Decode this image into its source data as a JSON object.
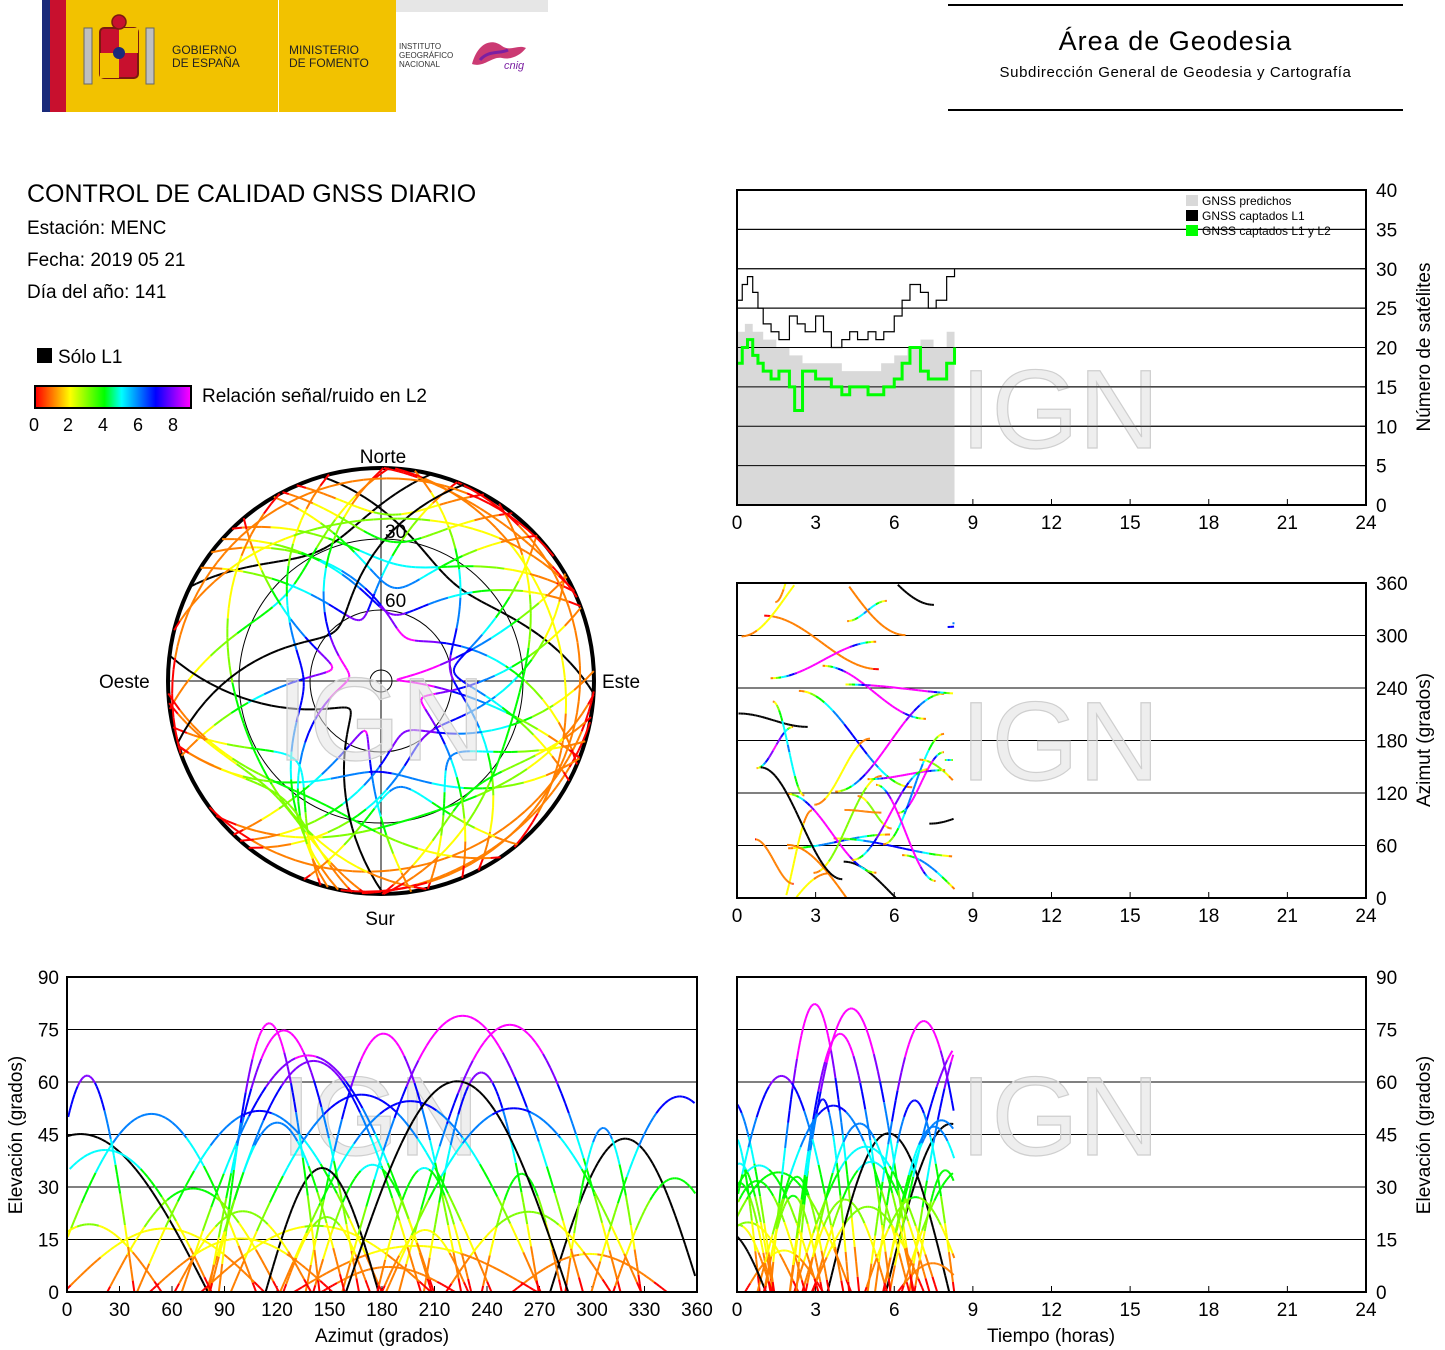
{
  "header": {
    "logo_gobierno": "GOBIERNO\nDE ESPAÑA",
    "logo_ministerio": "MINISTERIO\nDE FOMENTO",
    "logo_instituto": "INSTITUTO\nGEOGRÁFICO\nNACIONAL",
    "logo_cnig": "cnig",
    "area_title": "Área de Geodesia",
    "area_subtitle": "Subdirección General de Geodesia y Cartografía",
    "colors": {
      "logo_yellow": "#f2c200",
      "flag_red": "#c8102e",
      "flag_blue": "#1a2a7a"
    }
  },
  "report": {
    "title": "CONTROL DE CALIDAD GNSS DIARIO",
    "station": "Estación: MENC",
    "date": "Fecha: 2019 05 21",
    "doy": "Día del año: 141"
  },
  "legend": {
    "l1_only": "Sólo L1",
    "snr_label": "Relación señal/ruido en L2",
    "snr_ticks": [
      "0",
      "2",
      "4",
      "6",
      "8"
    ]
  },
  "watermark": "IGN",
  "skyplot": {
    "north": "Norte",
    "south": "Sur",
    "east": "Este",
    "west": "Oeste",
    "ring_labels": [
      "30",
      "60"
    ]
  },
  "chart_data": [
    {
      "type": "line",
      "name": "satellites",
      "xlim": [
        0,
        24
      ],
      "ylim": [
        0,
        40
      ],
      "x_ticks": [
        "0",
        "3",
        "6",
        "9",
        "12",
        "15",
        "18",
        "21",
        "24"
      ],
      "y_ticks": [
        "0",
        "5",
        "10",
        "15",
        "20",
        "25",
        "30",
        "35",
        "40"
      ],
      "ylabel": "Número de satélites",
      "legend": [
        "GNSS predichos",
        "GNSS captados L1",
        "GNSS captados L1 y L2"
      ],
      "legend_position": "top-right",
      "grid": true,
      "series": [
        {
          "name": "GNSS predichos",
          "color": "#d9d9d9",
          "x": [
            0,
            0.3,
            0.6,
            1,
            1.5,
            2,
            2.5,
            3,
            3.5,
            4,
            4.5,
            5,
            5.5,
            6,
            6.5,
            7,
            7.5,
            8,
            8.3
          ],
          "y": [
            22,
            23,
            22,
            21,
            20,
            19,
            18,
            18,
            18,
            17,
            17,
            17,
            18,
            19,
            20,
            21,
            20,
            22,
            23
          ]
        },
        {
          "name": "GNSS captados L1",
          "color": "#000000",
          "x": [
            0,
            0.2,
            0.4,
            0.6,
            0.8,
            1,
            1.3,
            1.6,
            2,
            2.3,
            2.6,
            3,
            3.3,
            3.6,
            4,
            4.3,
            4.6,
            5,
            5.3,
            5.6,
            6,
            6.3,
            6.6,
            7,
            7.3,
            7.6,
            8,
            8.3
          ],
          "y": [
            26,
            28,
            29,
            27,
            25,
            23,
            22,
            21,
            24,
            23,
            22,
            24,
            22,
            20,
            21,
            22,
            21,
            22,
            21,
            22,
            24,
            26,
            28,
            27,
            25,
            26,
            29,
            30
          ]
        },
        {
          "name": "GNSS captados L1 y L2",
          "color": "#00ff00",
          "x": [
            0,
            0.2,
            0.4,
            0.6,
            0.8,
            1,
            1.3,
            1.6,
            2,
            2.2,
            2.5,
            3,
            3.3,
            3.6,
            4,
            4.3,
            4.6,
            5,
            5.3,
            5.6,
            6,
            6.3,
            6.6,
            7,
            7.3,
            7.6,
            8,
            8.3
          ],
          "y": [
            18,
            20,
            21,
            19,
            18,
            17,
            16,
            17,
            15,
            12,
            17,
            16,
            16,
            15,
            14,
            15,
            15,
            14,
            14,
            15,
            16,
            18,
            20,
            17,
            16,
            16,
            18,
            20
          ]
        }
      ]
    },
    {
      "type": "scatter",
      "name": "azimut-vs-tiempo",
      "xlim": [
        0,
        24
      ],
      "ylim": [
        0,
        360
      ],
      "x_ticks": [
        "0",
        "3",
        "6",
        "9",
        "12",
        "15",
        "18",
        "21",
        "24"
      ],
      "y_ticks": [
        "0",
        "60",
        "120",
        "180",
        "240",
        "300",
        "360"
      ],
      "ylabel": "Azimut (grados)",
      "grid": true,
      "data_extent_hours": [
        0,
        8.3
      ]
    },
    {
      "type": "scatter",
      "name": "elevacion-vs-azimut",
      "xlim": [
        0,
        360
      ],
      "ylim": [
        0,
        90
      ],
      "x_ticks": [
        "0",
        "30",
        "60",
        "90",
        "120",
        "150",
        "180",
        "210",
        "240",
        "270",
        "300",
        "330",
        "360"
      ],
      "y_ticks": [
        "0",
        "15",
        "30",
        "45",
        "60",
        "75",
        "90"
      ],
      "xlabel": "Azimut (grados)",
      "ylabel": "Elevación (grados)",
      "grid": true
    },
    {
      "type": "scatter",
      "name": "elevacion-vs-tiempo",
      "xlim": [
        0,
        24
      ],
      "ylim": [
        0,
        90
      ],
      "x_ticks": [
        "0",
        "3",
        "6",
        "9",
        "12",
        "15",
        "18",
        "21",
        "24"
      ],
      "y_ticks": [
        "0",
        "15",
        "30",
        "45",
        "60",
        "75",
        "90"
      ],
      "xlabel": "Tiempo (horas)",
      "ylabel": "Elevación (grados)",
      "grid": true,
      "data_extent_hours": [
        0,
        8.3
      ]
    }
  ]
}
